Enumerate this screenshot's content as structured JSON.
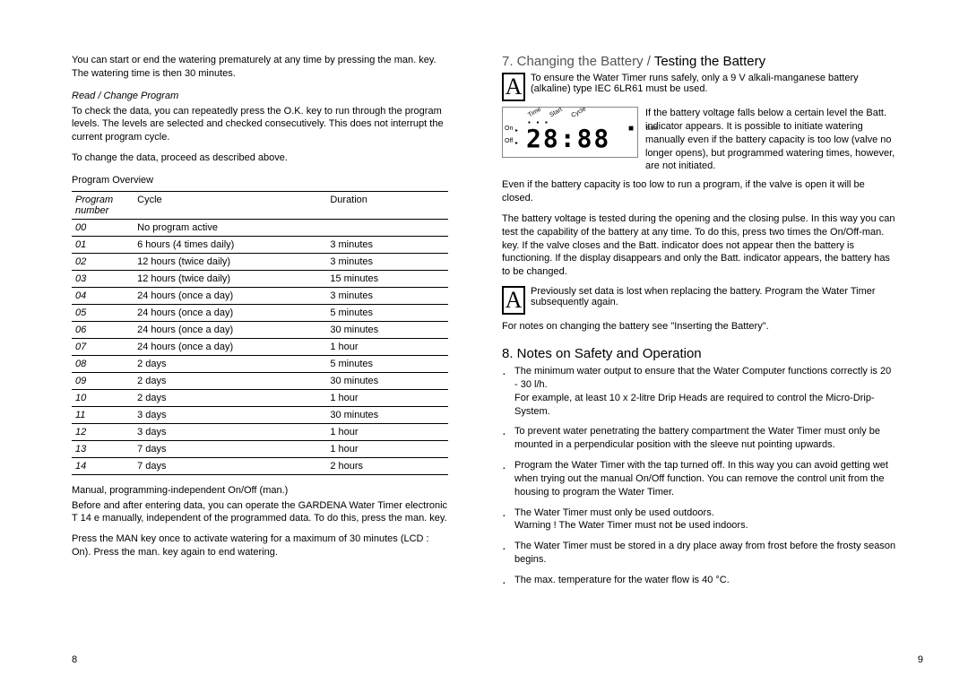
{
  "left": {
    "intro": "You can start or end the watering prematurely at any time by pressing the man. key. The watering time is then 30 minutes.",
    "read_change_heading": "Read / Change Program",
    "read_change_p1": "To check the data, you can repeatedly press the O.K. key to run through the program levels. The levels are selected and checked consecutively. This does not interrupt the current program cycle.",
    "read_change_p2": "To change the data, proceed as described above.",
    "program_overview_label": "Program Overview",
    "table_headers": {
      "num": "Program number",
      "cycle": "Cycle",
      "duration": "Duration"
    },
    "rows": [
      {
        "num": "00",
        "cycle": "No program active",
        "dur": ""
      },
      {
        "num": "01",
        "cycle": "6 hours (4 times daily)",
        "dur": "3 minutes"
      },
      {
        "num": "02",
        "cycle": "12 hours (twice daily)",
        "dur": "3 minutes"
      },
      {
        "num": "03",
        "cycle": "12 hours (twice daily)",
        "dur": "15 minutes"
      },
      {
        "num": "04",
        "cycle": "24 hours (once a day)",
        "dur": "3 minutes"
      },
      {
        "num": "05",
        "cycle": "24 hours (once a day)",
        "dur": "5 minutes"
      },
      {
        "num": "06",
        "cycle": "24 hours (once a day)",
        "dur": "30 minutes"
      },
      {
        "num": "07",
        "cycle": "24 hours (once a day)",
        "dur": "1 hour"
      },
      {
        "num": "08",
        "cycle": "2 days",
        "dur": "5 minutes"
      },
      {
        "num": "09",
        "cycle": "2 days",
        "dur": "30 minutes"
      },
      {
        "num": "10",
        "cycle": "2 days",
        "dur": "1 hour"
      },
      {
        "num": "11",
        "cycle": "3 days",
        "dur": "30 minutes"
      },
      {
        "num": "12",
        "cycle": "3 days",
        "dur": "1 hour"
      },
      {
        "num": "13",
        "cycle": "7 days",
        "dur": "1 hour"
      },
      {
        "num": "14",
        "cycle": "7 days",
        "dur": "2 hours"
      }
    ],
    "manual_heading": "Manual, programming-independent On/Off (man.)",
    "manual_p1": "Before and after entering data, you can operate the GARDENA Water Timer electronic T 14 e manually, independent of the programmed data. To do this, press the man. key.",
    "manual_p2": "Press the MAN key once to activate watering for a maximum of 30 minutes (LCD : On). Press the man. key again to end watering.",
    "page_num": "8"
  },
  "right": {
    "sec7_heading_gray": "7. Changing the Battery / ",
    "sec7_heading_bold": "Testing the Battery",
    "warn1": "To ensure the Water Timer runs safely, only a 9 V alkali-manganese battery (alkaline) type IEC 6LR61 must be used.",
    "lcd": {
      "digits": "28:88",
      "time_label": "Time",
      "start_label": "Start",
      "cycle_label": "Cycle",
      "batt_label": "Batt.",
      "on_label": "On",
      "off_label": "Off"
    },
    "lcd_side_text": "If the battery voltage falls below a certain level the Batt. indicator appears. It is possible to initiate watering manually even if the battery capacity is too low (valve no longer opens), but programmed watering times, however, are not initiated.",
    "batt_p1": "Even if the battery capacity is too low to run a program, if the valve is open it will be closed.",
    "batt_p2": "The battery voltage is tested during the opening and the closing pulse. In this way you can test the capability of the battery at any time. To do this, press two times the On/Off-man. key. If the valve closes and the Batt. indicator does not appear then the battery is functioning. If the display disappears and only the Batt. indicator appears, the battery has to be changed.",
    "warn2": "Previously set data is lost when replacing the battery. Program the Water Timer subsequently again.",
    "batt_p3": "For notes on changing the battery see \"Inserting the Battery\".",
    "sec8_heading": "8. Notes on Safety and Operation",
    "notes": [
      "The minimum water output to ensure that the Water Computer functions correctly is 20 - 30 l/h.\nFor example, at least 10 x 2-litre Drip Heads are required to control the Micro-Drip-System.",
      "To prevent water penetrating the battery compartment the Water Timer must only be mounted in a perpendicular position with the sleeve nut pointing upwards.",
      "Program the Water Timer with the tap turned off. In this way you can avoid getting wet when trying out the manual On/Off function. You can remove the control unit from the housing to program the Water Timer.",
      "The Water Timer must only be used outdoors.\nWarning ! The Water Timer must not be used indoors.",
      "The Water Timer must be stored in a dry place away from frost before the frosty season begins.",
      "The max. temperature for the water flow is 40 °C."
    ],
    "page_num": "9"
  }
}
